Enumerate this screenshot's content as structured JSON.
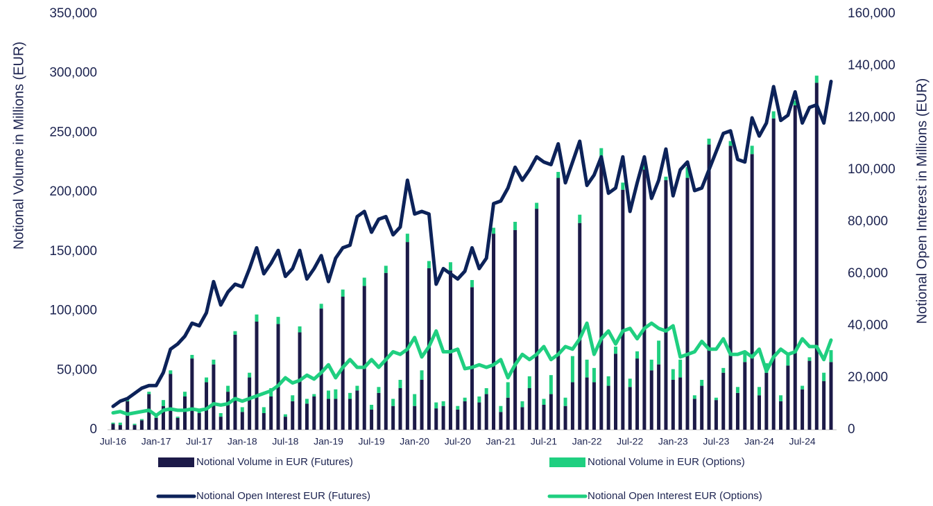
{
  "chart_data": {
    "type": "bar",
    "stacked": true,
    "categories": [
      "Jul-16",
      null,
      null,
      null,
      null,
      null,
      "Jan-17",
      null,
      null,
      null,
      null,
      null,
      "Jul-17",
      null,
      null,
      null,
      null,
      null,
      "Jan-18",
      null,
      null,
      null,
      null,
      null,
      "Jul-18",
      null,
      null,
      null,
      null,
      null,
      "Jan-19",
      null,
      null,
      null,
      null,
      null,
      "Jul-19",
      null,
      null,
      null,
      null,
      null,
      "Jan-20",
      null,
      null,
      null,
      null,
      null,
      "Jul-20",
      null,
      null,
      null,
      null,
      null,
      "Jan-21",
      null,
      null,
      null,
      null,
      null,
      "Jul-21",
      null,
      null,
      null,
      null,
      null,
      "Jan-22",
      null,
      null,
      null,
      null,
      null,
      "Jul-22",
      null,
      null,
      null,
      null,
      null,
      "Jan-23",
      null,
      null,
      null,
      null,
      null,
      "Jul-23",
      null,
      null,
      null,
      null,
      null,
      "Jan-24",
      null,
      null,
      null,
      null,
      null,
      "Jul-24",
      null,
      null,
      null,
      null
    ],
    "ylabel": "Notional Volume in Millions (EUR)",
    "y2label": "Notional Open Interest in Millions (EUR)",
    "ylim": [
      0,
      350000
    ],
    "yticks": [
      0,
      {
        "value": 50000,
        "label": "50,000"
      },
      {
        "value": 100000,
        "label": "100,000"
      },
      {
        "value": 150000,
        "label": "150,000"
      },
      {
        "value": 200000,
        "label": "200,000"
      },
      {
        "value": 250000,
        "label": "250,000"
      },
      {
        "value": 300000,
        "label": "300,000"
      },
      {
        "value": 350000,
        "label": "350,000"
      }
    ],
    "y2lim": [
      0,
      160000
    ],
    "y2ticks": [
      0,
      {
        "value": 20000,
        "label": "20,000"
      },
      {
        "value": 40000,
        "label": "40,000"
      },
      {
        "value": 60000,
        "label": "60,000"
      },
      {
        "value": 80000,
        "label": "80,000"
      },
      {
        "value": 100000,
        "label": "100,000"
      },
      {
        "value": 120000,
        "label": "120,000"
      },
      {
        "value": 140000,
        "label": "140,000"
      },
      {
        "value": 160000,
        "label": "160,000"
      }
    ],
    "series": [
      {
        "name": "Notional Volume in EUR (Futures)",
        "type": "bar",
        "color": "#1c1a48",
        "values": [
          5000,
          4000,
          24000,
          4000,
          8000,
          30000,
          10000,
          20000,
          47000,
          10000,
          28000,
          60000,
          14000,
          40000,
          55000,
          11000,
          32000,
          80000,
          15000,
          44000,
          91000,
          14000,
          28000,
          89000,
          11000,
          24000,
          82000,
          22000,
          28000,
          102000,
          26000,
          26000,
          112000,
          26000,
          33000,
          121000,
          17000,
          31000,
          132000,
          20000,
          35000,
          158000,
          20000,
          42000,
          136000,
          18000,
          20000,
          134000,
          17000,
          24000,
          120000,
          23000,
          30000,
          165000,
          15000,
          27000,
          168000,
          19000,
          35000,
          186000,
          21000,
          30000,
          212000,
          20000,
          40000,
          174000,
          44000,
          40000,
          229000,
          37000,
          64000,
          202000,
          36000,
          60000,
          219000,
          50000,
          55000,
          210000,
          42000,
          44000,
          212000,
          26000,
          37000,
          240000,
          25000,
          48000,
          239000,
          31000,
          57000,
          232000,
          29000,
          48000,
          262000,
          24000,
          54000,
          273000,
          34000,
          58000,
          292000,
          41000,
          57000
        ]
      },
      {
        "name": "Notional Volume in EUR (Options)",
        "type": "bar",
        "color": "#1fcf80",
        "values": [
          1000,
          2000,
          2000,
          1000,
          1000,
          2000,
          1000,
          5000,
          3000,
          1000,
          4000,
          3000,
          2000,
          4000,
          4000,
          3000,
          5000,
          3000,
          4000,
          4000,
          6000,
          5000,
          7000,
          6000,
          2000,
          5000,
          5000,
          4000,
          2000,
          4000,
          7000,
          8000,
          6000,
          5000,
          4000,
          7000,
          4000,
          5000,
          6000,
          6000,
          7000,
          7000,
          10000,
          8000,
          6000,
          5000,
          4000,
          7000,
          3000,
          3000,
          6000,
          5000,
          5000,
          5000,
          5000,
          13000,
          7000,
          5000,
          10000,
          5000,
          5000,
          16000,
          5000,
          7000,
          22000,
          7000,
          15000,
          12000,
          8000,
          8000,
          6000,
          6000,
          7000,
          6000,
          5000,
          9000,
          20000,
          3000,
          9000,
          15000,
          9000,
          3000,
          5000,
          5000,
          2000,
          4000,
          4000,
          5000,
          7000,
          7000,
          7000,
          8000,
          6000,
          5000,
          10000,
          4000,
          3000,
          3000,
          6000,
          7000,
          10000
        ]
      },
      {
        "name": "Notional Open Interest EUR (Futures)",
        "type": "line",
        "axis": "y2",
        "color": "#0c2259",
        "values": [
          9000,
          11000,
          12000,
          14000,
          16000,
          17000,
          17000,
          22000,
          31000,
          33000,
          36000,
          41000,
          40000,
          45000,
          57000,
          48000,
          53000,
          56000,
          55000,
          62000,
          70000,
          60000,
          64000,
          69000,
          59000,
          62000,
          69000,
          58000,
          62000,
          67000,
          57000,
          66000,
          70000,
          71000,
          82000,
          84000,
          76000,
          81000,
          82000,
          75000,
          78000,
          96000,
          83000,
          84000,
          83000,
          56000,
          62000,
          60000,
          58000,
          61000,
          70000,
          62000,
          66000,
          87000,
          88000,
          93000,
          101000,
          96000,
          100000,
          105000,
          103000,
          102000,
          110000,
          95000,
          103000,
          111000,
          94000,
          98000,
          105000,
          91000,
          93000,
          105000,
          84000,
          95000,
          105000,
          89000,
          96000,
          108000,
          90000,
          100000,
          103000,
          92000,
          93000,
          100000,
          107000,
          114000,
          115000,
          104000,
          103000,
          120000,
          113000,
          118000,
          132000,
          119000,
          121000,
          130000,
          118000,
          124000,
          125000,
          118000,
          134000
        ]
      },
      {
        "name": "Notional Open Interest EUR (Options)",
        "type": "line",
        "axis": "y2",
        "color": "#1fcf80",
        "values": [
          6500,
          7000,
          6000,
          6500,
          7000,
          7500,
          5500,
          7500,
          8000,
          7500,
          7500,
          8000,
          7500,
          8000,
          10000,
          9500,
          10000,
          12000,
          11000,
          12000,
          13000,
          14000,
          15000,
          17000,
          20000,
          18000,
          19000,
          21000,
          19500,
          22000,
          25000,
          20000,
          24000,
          27000,
          24000,
          24000,
          27000,
          24000,
          27000,
          30000,
          29000,
          31000,
          35500,
          28000,
          32000,
          38000,
          30000,
          30000,
          31000,
          23500,
          24000,
          25000,
          24000,
          25000,
          27000,
          20000,
          25000,
          29000,
          27000,
          29000,
          32000,
          27000,
          29000,
          32000,
          31000,
          35000,
          41000,
          29000,
          35000,
          38000,
          33000,
          38000,
          39000,
          35000,
          39000,
          41000,
          39000,
          38000,
          40000,
          28000,
          29000,
          30000,
          34000,
          31000,
          31000,
          35000,
          29000,
          29000,
          30000,
          28000,
          31000,
          22500,
          28000,
          31000,
          29000,
          30000,
          35000,
          32000,
          32000,
          27000,
          34500
        ]
      }
    ]
  }
}
